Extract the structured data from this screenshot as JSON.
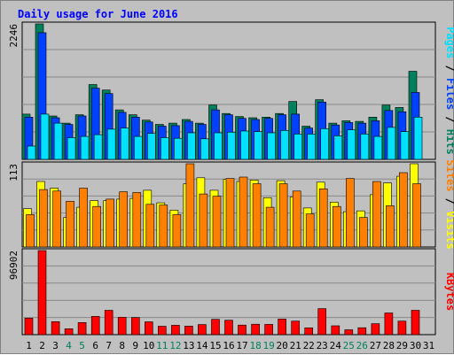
{
  "chart_data": {
    "type": "bar",
    "title": "Daily usage for June 2016",
    "categories": [
      "1",
      "2",
      "3",
      "4",
      "5",
      "6",
      "7",
      "8",
      "9",
      "10",
      "11",
      "12",
      "13",
      "14",
      "15",
      "16",
      "17",
      "18",
      "19",
      "20",
      "21",
      "22",
      "23",
      "24",
      "25",
      "26",
      "27",
      "28",
      "29",
      "30",
      "31"
    ],
    "weekend_days": [
      "4",
      "5",
      "11",
      "12",
      "18",
      "19",
      "25",
      "26"
    ],
    "panels": [
      {
        "id": "hits-files-pages",
        "max_label": "2246",
        "ylim": [
          0,
          2246
        ],
        "series": [
          {
            "name": "Hits",
            "color": "#00805c",
            "values": [
              750,
              2246,
              720,
              600,
              740,
              1240,
              1150,
              820,
              740,
              650,
              580,
              600,
              660,
              600,
              900,
              760,
              710,
              690,
              700,
              760,
              960,
              550,
              990,
              600,
              640,
              630,
              700,
              900,
              860,
              1460,
              0
            ]
          },
          {
            "name": "Files",
            "color": "#0040ff",
            "values": [
              700,
              2100,
              690,
              580,
              720,
              1180,
              1090,
              780,
              700,
              620,
              550,
              560,
              630,
              580,
              820,
              740,
              680,
              660,
              680,
              740,
              750,
              520,
              950,
              570,
              610,
              600,
              640,
              810,
              790,
              1110,
              0
            ]
          },
          {
            "name": "Pages",
            "color": "#00e0ff",
            "values": [
              220,
              750,
              600,
              360,
              380,
              410,
              500,
              520,
              380,
              430,
              360,
              350,
              440,
              340,
              440,
              450,
              470,
              460,
              440,
              480,
              420,
              420,
              510,
              390,
              490,
              420,
              380,
              530,
              460,
              700,
              0
            ]
          }
        ]
      },
      {
        "id": "visits-sites",
        "max_label": "113",
        "ylim": [
          0,
          113
        ],
        "series": [
          {
            "name": "Visits",
            "color": "#ffff00",
            "values": [
              52,
              89,
              80,
              40,
              54,
              63,
              63,
              65,
              66,
              77,
              60,
              50,
              86,
              94,
              77,
              92,
              89,
              91,
              67,
              90,
              68,
              53,
              88,
              61,
              48,
              49,
              71,
              87,
              96,
              113,
              0
            ]
          },
          {
            "name": "Sites",
            "color": "#ff8000",
            "values": [
              44,
              78,
              76,
              62,
              80,
              55,
              65,
              75,
              74,
              58,
              57,
              44,
              113,
              72,
              69,
              93,
              95,
              86,
              54,
              86,
              76,
              45,
              79,
              55,
              93,
              40,
              89,
              56,
              101,
              86,
              0
            ]
          }
        ]
      },
      {
        "id": "kbytes",
        "max_label": "96902",
        "ylim": [
          0,
          96902
        ],
        "series": [
          {
            "name": "KBytes",
            "color": "#ff0000",
            "values": [
              19000,
              96902,
              15000,
              6700,
              14000,
              21000,
              28000,
              20000,
              19800,
              14800,
              9700,
              10800,
              9800,
              11600,
              17600,
              16600,
              11000,
              12000,
              11800,
              18000,
              15600,
              7900,
              30000,
              10200,
              5600,
              8000,
              12600,
              25000,
              15600,
              28000,
              0
            ]
          }
        ]
      }
    ],
    "side_labels": [
      {
        "parts": [
          {
            "text": "Pages",
            "color": "#00e0ff"
          },
          {
            "text": " / ",
            "color": "#000000"
          },
          {
            "text": "Files",
            "color": "#0040ff"
          },
          {
            "text": " / ",
            "color": "#000000"
          },
          {
            "text": "Hits",
            "color": "#00805c"
          }
        ]
      },
      {
        "parts": [
          {
            "text": "Sites",
            "color": "#ff8000"
          },
          {
            "text": " / ",
            "color": "#000000"
          },
          {
            "text": "Visits",
            "color": "#ffff00"
          }
        ]
      },
      {
        "parts": [
          {
            "text": "KBytes",
            "color": "#ff0000"
          }
        ]
      }
    ],
    "colors": {
      "title": "#0000ff",
      "background": "#c0c0c0",
      "weekday_tick": "#000000",
      "weekend_tick": "#00805c",
      "grid": "#888888"
    }
  }
}
